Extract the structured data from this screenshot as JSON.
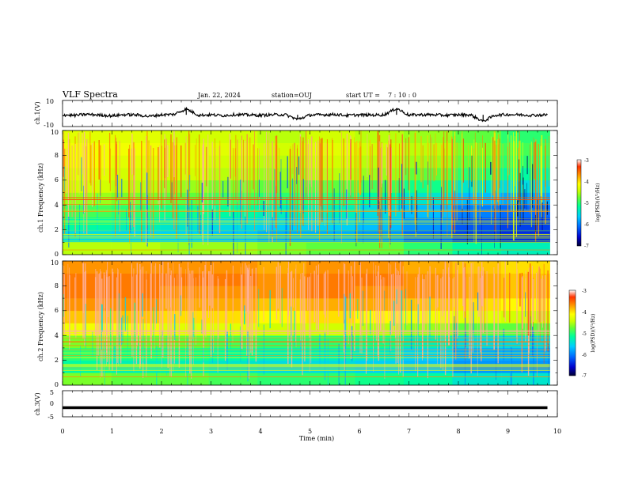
{
  "header": {
    "title": "VLF Spectra",
    "date": "Jan. 22, 2024",
    "station": "station=OUJ",
    "start_label": "start UT =",
    "start_time": "7 : 10 : 0"
  },
  "colorbar": {
    "label": "log(PSD)(V²/Hz)",
    "ticks": [
      "-3",
      "-4",
      "-5",
      "-6",
      "-7"
    ],
    "range": [
      -7,
      -3
    ],
    "colors": [
      "#000033",
      "#0000cc",
      "#0066ff",
      "#00ccff",
      "#00ff99",
      "#66ff33",
      "#ccff00",
      "#ffff00",
      "#ff9900",
      "#ff3300",
      "#ffffff"
    ]
  },
  "chart_data": [
    {
      "type": "line",
      "panel": "ch.1(V)",
      "ylabel": "ch.1(V)",
      "ylim": [
        -10,
        10
      ],
      "yticks": [
        "10",
        "-10"
      ],
      "x": [
        0.0,
        0.25,
        0.5,
        0.75,
        1.0,
        1.25,
        1.5,
        1.75,
        2.0,
        2.25,
        2.5,
        2.75,
        3.0,
        3.25,
        3.5,
        3.75,
        4.0,
        4.25,
        4.5,
        4.75,
        5.0,
        5.25,
        5.5,
        5.75,
        6.0,
        6.25,
        6.5,
        6.75,
        7.0,
        7.25,
        7.5,
        7.75,
        8.0,
        8.25,
        8.5,
        8.75,
        9.0,
        9.25,
        9.5,
        9.8
      ],
      "y": [
        -1.0,
        -1.5,
        -0.6,
        -1.2,
        -1.8,
        -0.9,
        -1.1,
        -2.2,
        -1.0,
        -0.7,
        3.5,
        -1.3,
        -1.0,
        -1.6,
        -0.8,
        -1.1,
        -1.4,
        -1.0,
        -0.9,
        -4.5,
        -1.2,
        -1.0,
        -0.7,
        -1.5,
        -1.1,
        -1.2,
        -1.0,
        4.0,
        -1.3,
        -0.9,
        -1.0,
        -1.4,
        -1.0,
        -1.1,
        -6.0,
        -1.2,
        -0.8,
        -1.0,
        -1.3,
        -1.1
      ]
    },
    {
      "type": "heatmap",
      "panel": "ch.1 spectrogram",
      "ylabel": "ch.1 Frequency (kHz)",
      "ylim": [
        0,
        10
      ],
      "yticks": [
        "0",
        "2",
        "4",
        "6",
        "8",
        "10"
      ],
      "xlim": [
        0,
        9.85
      ],
      "zlabel": "log(PSD)(V²/Hz)",
      "zlim": [
        -7,
        -3
      ],
      "freq_kHz": [
        0.5,
        1.5,
        2.5,
        3.5,
        4.5,
        5.5,
        6.5,
        7.5,
        8.5,
        9.5
      ],
      "time_min": [
        0.5,
        1.5,
        2.5,
        3.5,
        4.5,
        5.5,
        6.5,
        7.5,
        8.5,
        9.5
      ],
      "log_psd": [
        [
          -4.5,
          -4.5,
          -4.6,
          -4.6,
          -4.7,
          -4.8,
          -4.8,
          -5.0,
          -5.2,
          -5.3
        ],
        [
          -5.5,
          -5.6,
          -5.6,
          -5.7,
          -5.8,
          -5.8,
          -5.9,
          -6.1,
          -6.3,
          -6.4
        ],
        [
          -5.2,
          -5.3,
          -5.4,
          -5.5,
          -5.6,
          -5.6,
          -5.7,
          -5.9,
          -6.2,
          -6.3
        ],
        [
          -4.9,
          -5.0,
          -5.1,
          -5.2,
          -5.3,
          -5.3,
          -5.5,
          -5.7,
          -6.0,
          -6.1
        ],
        [
          -4.6,
          -4.7,
          -4.8,
          -4.9,
          -5.0,
          -5.0,
          -5.2,
          -5.4,
          -5.7,
          -5.8
        ],
        [
          -4.4,
          -4.5,
          -4.6,
          -4.7,
          -4.8,
          -4.8,
          -4.9,
          -5.1,
          -5.4,
          -5.5
        ],
        [
          -4.3,
          -4.4,
          -4.4,
          -4.5,
          -4.6,
          -4.5,
          -4.6,
          -4.8,
          -5.0,
          -5.2
        ],
        [
          -4.2,
          -4.3,
          -4.3,
          -4.4,
          -4.5,
          -4.4,
          -4.5,
          -4.6,
          -4.8,
          -5.0
        ],
        [
          -4.2,
          -4.2,
          -4.3,
          -4.3,
          -4.4,
          -4.3,
          -4.4,
          -4.5,
          -4.7,
          -4.9
        ],
        [
          -4.3,
          -4.3,
          -4.4,
          -4.4,
          -4.5,
          -4.4,
          -4.5,
          -4.6,
          -4.8,
          -5.0
        ]
      ]
    },
    {
      "type": "heatmap",
      "panel": "ch.2 spectrogram",
      "ylabel": "ch.2 Frequency (kHz)",
      "ylim": [
        0,
        10
      ],
      "yticks": [
        "0",
        "2",
        "4",
        "6",
        "8",
        "10"
      ],
      "xlim": [
        0,
        9.85
      ],
      "zlabel": "log(PSD)(V²/Hz)",
      "zlim": [
        -7,
        -3
      ],
      "freq_kHz": [
        0.5,
        1.5,
        2.5,
        3.5,
        4.5,
        5.5,
        6.5,
        7.5,
        8.5,
        9.5
      ],
      "time_min": [
        0.5,
        1.5,
        2.5,
        3.5,
        4.5,
        5.5,
        6.5,
        7.5,
        8.5,
        9.5
      ],
      "log_psd": [
        [
          -4.7,
          -4.8,
          -4.8,
          -4.9,
          -5.0,
          -5.0,
          -5.1,
          -5.2,
          -5.4,
          -5.4
        ],
        [
          -5.2,
          -5.3,
          -5.3,
          -5.4,
          -5.5,
          -5.5,
          -5.6,
          -5.7,
          -5.9,
          -5.9
        ],
        [
          -5.0,
          -5.1,
          -5.1,
          -5.2,
          -5.3,
          -5.3,
          -5.4,
          -5.6,
          -5.8,
          -5.8
        ],
        [
          -4.7,
          -4.8,
          -4.8,
          -4.9,
          -5.0,
          -5.0,
          -5.1,
          -5.3,
          -5.5,
          -5.5
        ],
        [
          -4.2,
          -4.2,
          -4.3,
          -4.3,
          -4.4,
          -4.4,
          -4.5,
          -4.6,
          -4.8,
          -4.8
        ],
        [
          -3.9,
          -3.9,
          -4.0,
          -4.0,
          -4.1,
          -4.0,
          -4.1,
          -4.2,
          -4.3,
          -4.4
        ],
        [
          -3.7,
          -3.7,
          -3.8,
          -3.8,
          -3.9,
          -3.8,
          -3.8,
          -3.9,
          -4.0,
          -4.1
        ],
        [
          -3.6,
          -3.6,
          -3.7,
          -3.7,
          -3.7,
          -3.6,
          -3.7,
          -3.7,
          -3.8,
          -3.9
        ],
        [
          -3.6,
          -3.6,
          -3.6,
          -3.6,
          -3.7,
          -3.6,
          -3.6,
          -3.7,
          -3.8,
          -3.9
        ],
        [
          -3.7,
          -3.7,
          -3.7,
          -3.7,
          -3.8,
          -3.7,
          -3.7,
          -3.8,
          -3.9,
          -4.0
        ]
      ]
    },
    {
      "type": "line",
      "panel": "ch.3(V)",
      "ylabel": "ch.3(V)",
      "ylim": [
        -5,
        5
      ],
      "yticks": [
        "5",
        "0",
        "-5"
      ],
      "xlabel": "Time (min)",
      "xlim": [
        0,
        10
      ],
      "xticks": [
        "0",
        "1",
        "2",
        "3",
        "4",
        "5",
        "6",
        "7",
        "8",
        "9",
        "10"
      ],
      "x": [
        0.0,
        9.8
      ],
      "y": [
        -1.5,
        -1.5
      ]
    }
  ]
}
